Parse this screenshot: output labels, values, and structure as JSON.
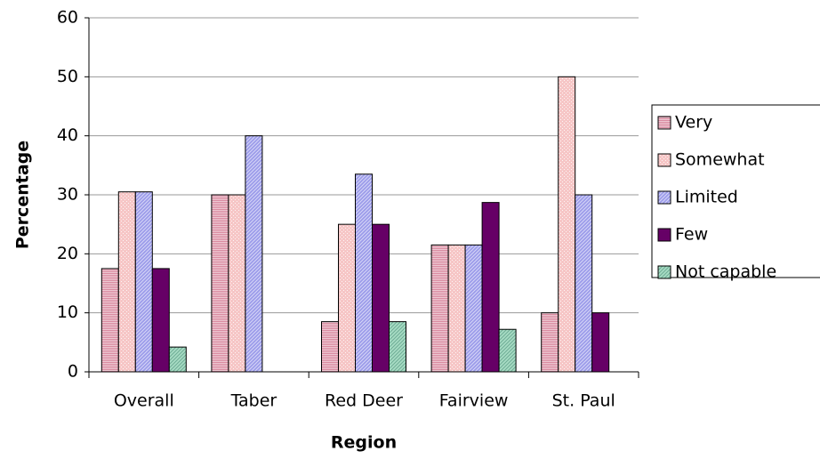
{
  "chart_data": {
    "type": "bar",
    "x_label": "Region",
    "y_label": "Percentage",
    "categories": [
      "Overall",
      "Taber",
      "Red Deer",
      "Fairview",
      "St. Paul"
    ],
    "series": [
      {
        "name": "Very",
        "color": "#d9899f",
        "values": [
          17.5,
          30,
          8.5,
          21.5,
          10
        ]
      },
      {
        "name": "Somewhat",
        "color": "#f6c6c6",
        "values": [
          30.5,
          30,
          25,
          21.5,
          50
        ]
      },
      {
        "name": "Limited",
        "color": "#9b9bea",
        "values": [
          30.5,
          40,
          33.5,
          21.5,
          30
        ]
      },
      {
        "name": "Few",
        "color": "#660066",
        "values": [
          17.5,
          null,
          25,
          28.7,
          10
        ]
      },
      {
        "name": "Not capable",
        "color": "#a8dcc4",
        "values": [
          4.2,
          null,
          8.5,
          7.2,
          null
        ]
      }
    ],
    "ylim": [
      0,
      60
    ],
    "yticks": [
      0,
      10,
      20,
      30,
      40,
      50,
      60
    ],
    "grid": true,
    "legend": "right"
  }
}
